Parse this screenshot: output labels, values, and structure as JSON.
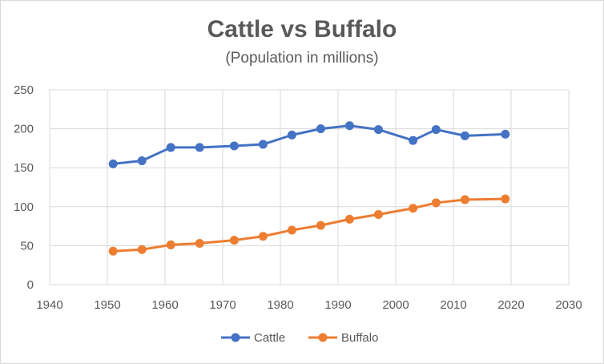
{
  "chart_data": {
    "type": "line",
    "title": "Cattle vs Buffalo",
    "subtitle": "(Population in millions)",
    "xlabel": "",
    "ylabel": "",
    "xlim": [
      1940,
      2030
    ],
    "ylim": [
      0,
      250
    ],
    "x_ticks": [
      1940,
      1950,
      1960,
      1970,
      1980,
      1990,
      2000,
      2010,
      2020,
      2030
    ],
    "y_ticks": [
      0,
      50,
      100,
      150,
      200,
      250
    ],
    "grid": true,
    "legend_position": "bottom",
    "series": [
      {
        "name": "Cattle",
        "color": "#4472C4",
        "x": [
          1951,
          1956,
          1961,
          1966,
          1972,
          1977,
          1982,
          1987,
          1992,
          1997,
          2003,
          2007,
          2012,
          2019
        ],
        "y": [
          155,
          159,
          176,
          176,
          178,
          180,
          192,
          200,
          204,
          199,
          185,
          199,
          191,
          193
        ]
      },
      {
        "name": "Buffalo",
        "color": "#ED7D31",
        "x": [
          1951,
          1956,
          1961,
          1966,
          1972,
          1977,
          1982,
          1987,
          1992,
          1997,
          2003,
          2007,
          2012,
          2019
        ],
        "y": [
          43,
          45,
          51,
          53,
          57,
          62,
          70,
          76,
          84,
          90,
          98,
          105,
          109,
          110
        ]
      }
    ]
  }
}
